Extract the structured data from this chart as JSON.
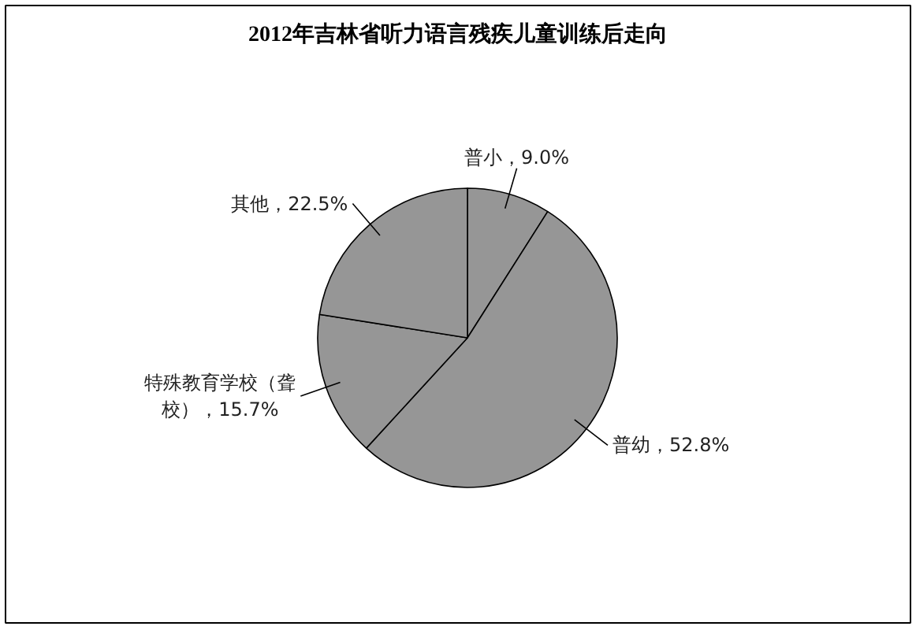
{
  "chart_data": {
    "type": "pie",
    "title": "2012年吉林省听力语言残疾儿童训练后走向",
    "categories": [
      "普小",
      "普幼",
      "特殊教育学校（聋校）",
      "其他"
    ],
    "values": [
      9.0,
      52.8,
      15.7,
      22.5
    ],
    "colors": [
      "#969696",
      "#969696",
      "#969696",
      "#969696"
    ],
    "value_labels": [
      "，9.0%",
      "，52.8%",
      "，15.7%",
      "，22.5%"
    ]
  }
}
